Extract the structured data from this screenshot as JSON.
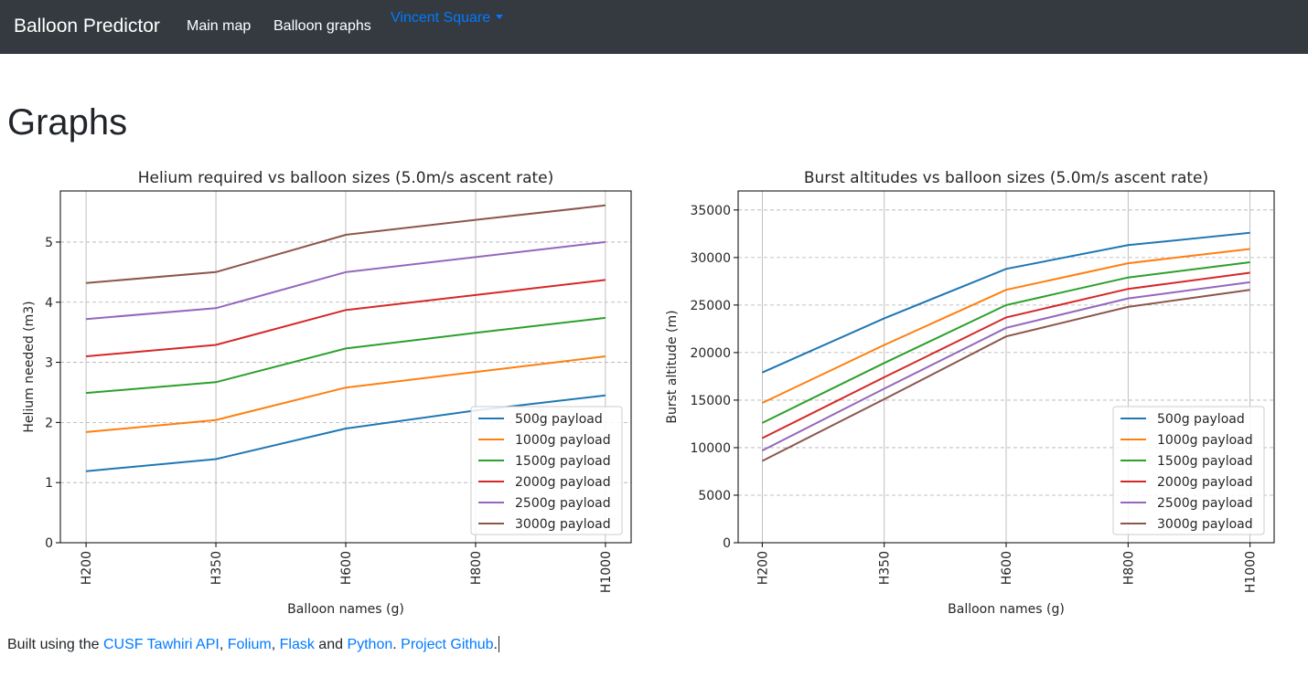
{
  "navbar": {
    "brand": "Balloon Predictor",
    "links": [
      "Main map",
      "Balloon graphs"
    ],
    "dropdown": "Vincent Square",
    "bg_color": "#343a40",
    "dropdown_color": "#007bff"
  },
  "page": {
    "title": "Graphs"
  },
  "footer": {
    "prefix": "Built using the ",
    "link_tawhiri": "CUSF Tawhiri API",
    "sep1": ", ",
    "link_folium": "Folium",
    "sep2": ", ",
    "link_flask": "Flask",
    "and": " and ",
    "link_python": "Python",
    "sep3": ". ",
    "link_github": "Project Github",
    "end": ".",
    "link_color": "#007bff"
  },
  "chart_data": [
    {
      "type": "line",
      "title": "Helium required vs balloon sizes (5.0m/s ascent rate)",
      "xlabel": "Balloon names (g)",
      "ylabel": "Helium needed (m3)",
      "categories": [
        "H200",
        "H350",
        "H600",
        "H800",
        "H1000"
      ],
      "ylim": [
        0,
        5.85
      ],
      "yticks": [
        0,
        1,
        2,
        3,
        4,
        5
      ],
      "ytick_labels": [
        "0",
        "1",
        "2",
        "3",
        "4",
        "5"
      ],
      "grid": true,
      "legend_position": "lower-right",
      "series": [
        {
          "name": "500g payload",
          "color": "#1f77b4",
          "values": [
            1.19,
            1.39,
            1.9,
            2.2,
            2.45
          ]
        },
        {
          "name": "1000g payload",
          "color": "#ff7f0e",
          "values": [
            1.84,
            2.04,
            2.58,
            2.84,
            3.1
          ]
        },
        {
          "name": "1500g payload",
          "color": "#2ca02c",
          "values": [
            2.49,
            2.67,
            3.23,
            3.49,
            3.74
          ]
        },
        {
          "name": "2000g payload",
          "color": "#d62728",
          "values": [
            3.1,
            3.29,
            3.87,
            4.12,
            4.37
          ]
        },
        {
          "name": "2500g payload",
          "color": "#9467bd",
          "values": [
            3.72,
            3.9,
            4.5,
            4.75,
            5.0
          ]
        },
        {
          "name": "3000g payload",
          "color": "#8c564b",
          "values": [
            4.32,
            4.5,
            5.12,
            5.37,
            5.61
          ]
        }
      ]
    },
    {
      "type": "line",
      "title": "Burst altitudes vs balloon sizes (5.0m/s ascent rate)",
      "xlabel": "Balloon names (g)",
      "ylabel": "Burst altitude (m)",
      "categories": [
        "H200",
        "H350",
        "H600",
        "H800",
        "H1000"
      ],
      "ylim": [
        0,
        37000
      ],
      "yticks": [
        0,
        5000,
        10000,
        15000,
        20000,
        25000,
        30000,
        35000
      ],
      "ytick_labels": [
        "0",
        "5000",
        "10000",
        "15000",
        "20000",
        "25000",
        "30000",
        "35000"
      ],
      "grid": true,
      "legend_position": "lower-right",
      "series": [
        {
          "name": "500g payload",
          "color": "#1f77b4",
          "values": [
            17900,
            23600,
            28800,
            31300,
            32600
          ]
        },
        {
          "name": "1000g payload",
          "color": "#ff7f0e",
          "values": [
            14700,
            20800,
            26600,
            29400,
            30900
          ]
        },
        {
          "name": "1500g payload",
          "color": "#2ca02c",
          "values": [
            12600,
            18900,
            25000,
            27900,
            29500
          ]
        },
        {
          "name": "2000g payload",
          "color": "#d62728",
          "values": [
            11000,
            17400,
            23700,
            26700,
            28400
          ]
        },
        {
          "name": "2500g payload",
          "color": "#9467bd",
          "values": [
            9700,
            16200,
            22600,
            25700,
            27400
          ]
        },
        {
          "name": "3000g payload",
          "color": "#8c564b",
          "values": [
            8600,
            15100,
            21700,
            24800,
            26600
          ]
        }
      ]
    }
  ]
}
